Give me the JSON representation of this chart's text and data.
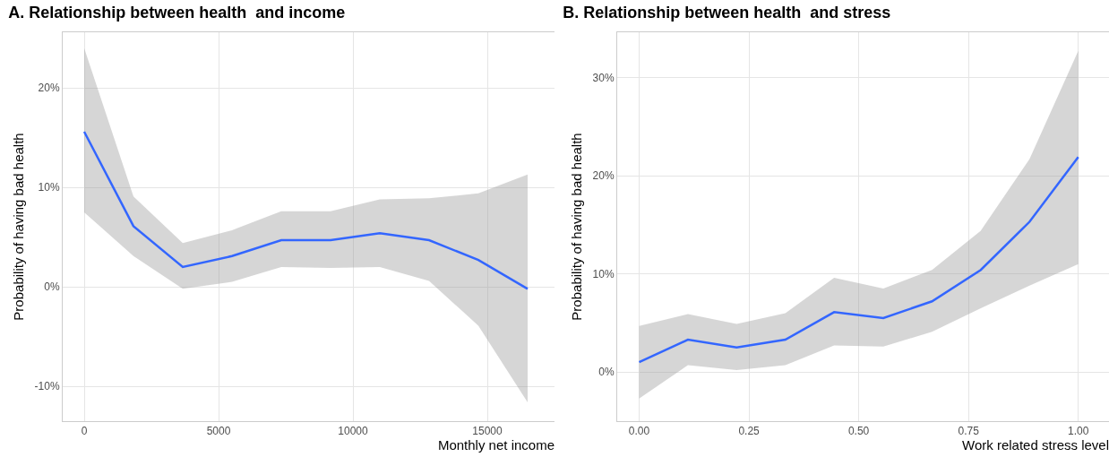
{
  "chart_data": [
    {
      "type": "line",
      "title": "A. Relationship between health  and income",
      "xlabel": "Monthly net income",
      "ylabel": "Probability of having bad health",
      "xlim": [
        -800,
        17500
      ],
      "xticks": [
        0,
        5000,
        10000,
        15000
      ],
      "ylim": [
        -13.5,
        25.6
      ],
      "yticks": [
        {
          "value": -10,
          "label": "-10%"
        },
        {
          "value": 0,
          "label": "0%"
        },
        {
          "value": 10,
          "label": "10%"
        },
        {
          "value": 20,
          "label": "20%"
        }
      ],
      "grid": true,
      "x": [
        0,
        1833,
        3667,
        5500,
        7333,
        9167,
        11000,
        12833,
        14667,
        16500
      ],
      "series": [
        {
          "color": "#3366ff",
          "values": [
            15.6,
            6.1,
            2.0,
            3.1,
            4.7,
            4.7,
            5.4,
            4.7,
            2.7,
            -0.2
          ],
          "lower": [
            7.5,
            3.1,
            -0.2,
            0.5,
            2.0,
            1.9,
            2.0,
            0.6,
            -3.9,
            -11.6
          ],
          "upper": [
            24.0,
            9.1,
            4.4,
            5.7,
            7.6,
            7.6,
            8.8,
            8.9,
            9.4,
            11.3
          ]
        }
      ]
    },
    {
      "type": "line",
      "title": "B. Relationship between health  and stress",
      "xlabel": "Work related stress level",
      "ylabel": "Probability of having bad health",
      "xlim": [
        -0.05,
        1.07
      ],
      "xticks": [
        {
          "value": 0,
          "label": "0.00"
        },
        {
          "value": 0.25,
          "label": "0.25"
        },
        {
          "value": 0.5,
          "label": "0.50"
        },
        {
          "value": 0.75,
          "label": "0.75"
        },
        {
          "value": 1,
          "label": "1.00"
        }
      ],
      "ylim": [
        -5,
        34.6
      ],
      "yticks": [
        {
          "value": 0,
          "label": "0%"
        },
        {
          "value": 10,
          "label": "10%"
        },
        {
          "value": 20,
          "label": "20%"
        },
        {
          "value": 30,
          "label": "30%"
        }
      ],
      "grid": true,
      "x": [
        0,
        0.111,
        0.222,
        0.333,
        0.444,
        0.556,
        0.667,
        0.778,
        0.889,
        1.0
      ],
      "series": [
        {
          "color": "#3366ff",
          "values": [
            1.0,
            3.3,
            2.5,
            3.3,
            6.1,
            5.5,
            7.2,
            10.4,
            15.3,
            21.9
          ],
          "lower": [
            -2.7,
            0.7,
            0.2,
            0.7,
            2.7,
            2.6,
            4.1,
            6.5,
            8.8,
            11.0
          ],
          "upper": [
            4.7,
            5.9,
            4.9,
            6.0,
            9.6,
            8.5,
            10.4,
            14.4,
            21.7,
            32.7
          ]
        }
      ]
    }
  ]
}
